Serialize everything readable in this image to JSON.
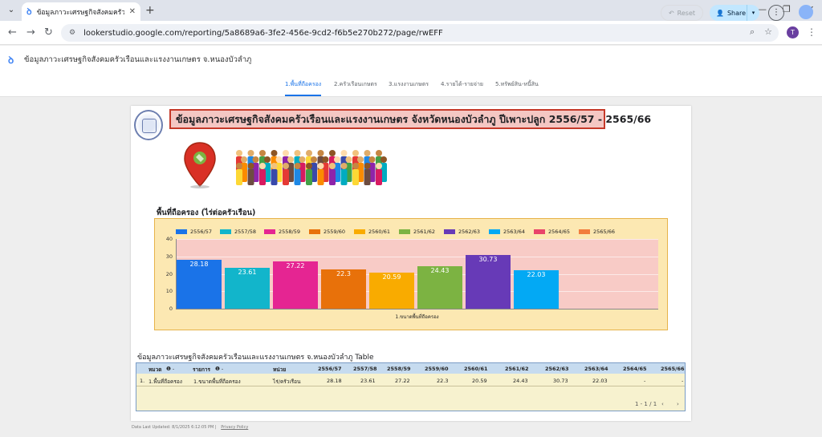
{
  "browser": {
    "tab_title": "ข้อมูลภาวะเศรษฐกิจสังคมครัวเรือนแ",
    "url_host": "lookerstudio.google.com",
    "url_path": "/reporting/5a8689a6-3fe2-456e-9cd2-f6b5e270b272/page/rwEFF",
    "profile_initial": "T"
  },
  "header": {
    "report_title": "ข้อมูลภาวะเศรษฐกิจสังคมครัวเรือนและแรงงานเกษตร จ.หนองบัวลำภู",
    "reset_label": "Reset",
    "share_label": "Share"
  },
  "nav": {
    "tabs": [
      {
        "label": "1.พื้นที่ถือครอง",
        "active": true
      },
      {
        "label": "2.ครัวเรือนเกษตร",
        "active": false
      },
      {
        "label": "3.แรงงานเกษตร",
        "active": false
      },
      {
        "label": "4.รายได้-รายจ่าย",
        "active": false
      },
      {
        "label": "5.ทรัพย์สิน-หนี้สิน",
        "active": false
      }
    ]
  },
  "report": {
    "banner": "ข้อมูลภาวะเศรษฐกิจสังคมครัวเรือนและแรงงานเกษตร จังหวัดหนองบัวลำภู ปีเพาะปลูก 2556/57 - 2565/66",
    "chart_title": "พื้นที่ถือครอง (ไร่ต่อครัวเรือน)",
    "table_title": "ข้อมูลภาวะเศรษฐกิจสังคมครัวเรือนและแรงงานเกษตร จ.หนองบัวลำภู Table",
    "footer_updated": "Data Last Updated: 8/1/2025 6:12:05 PM",
    "footer_privacy": "Privacy Policy"
  },
  "chart_data": {
    "type": "bar",
    "categories": [
      "1.ขนาดพื้นที่ถือครอง"
    ],
    "series": [
      {
        "name": "2556/57",
        "values": [
          28.18
        ],
        "color": "#1a73e8"
      },
      {
        "name": "2557/58",
        "values": [
          23.61
        ],
        "color": "#12b5cb"
      },
      {
        "name": "2558/59",
        "values": [
          27.22
        ],
        "color": "#e52592"
      },
      {
        "name": "2559/60",
        "values": [
          22.3
        ],
        "color": "#e8710a"
      },
      {
        "name": "2560/61",
        "values": [
          20.59
        ],
        "color": "#f9ab00"
      },
      {
        "name": "2561/62",
        "values": [
          24.43
        ],
        "color": "#7cb342"
      },
      {
        "name": "2562/63",
        "values": [
          30.73
        ],
        "color": "#673ab7"
      },
      {
        "name": "2563/64",
        "values": [
          22.03
        ],
        "color": "#03a9f4"
      },
      {
        "name": "2564/65",
        "values": [
          null
        ],
        "color": "#e9446a"
      },
      {
        "name": "2565/66",
        "values": [
          null
        ],
        "color": "#f27d3e"
      }
    ],
    "ylim": [
      0,
      40
    ],
    "yticks": [
      0,
      10,
      20,
      30,
      40
    ],
    "grid": true,
    "legend_position": "top"
  },
  "table": {
    "headers": [
      "หมวด",
      "รายการ",
      "หน่วย",
      "2556/57",
      "2557/58",
      "2558/59",
      "2559/60",
      "2560/61",
      "2561/62",
      "2562/63",
      "2563/64",
      "2564/65",
      "2565/66"
    ],
    "rows": [
      {
        "index": "1.",
        "cells": [
          "1.พื้นที่ถือครอง",
          "1.ขนาดพื้นที่ถือครอง",
          "ไร่/ครัวเรือน",
          "28.18",
          "23.61",
          "27.22",
          "22.3",
          "20.59",
          "24.43",
          "30.73",
          "22.03",
          "-",
          "-"
        ]
      }
    ],
    "pagination": "1 - 1 / 1"
  },
  "icons": [
    "search-icon",
    "star-icon",
    "back-icon",
    "forward-icon",
    "reload-icon",
    "info-icon",
    "chevron-left-icon",
    "chevron-right-icon"
  ]
}
